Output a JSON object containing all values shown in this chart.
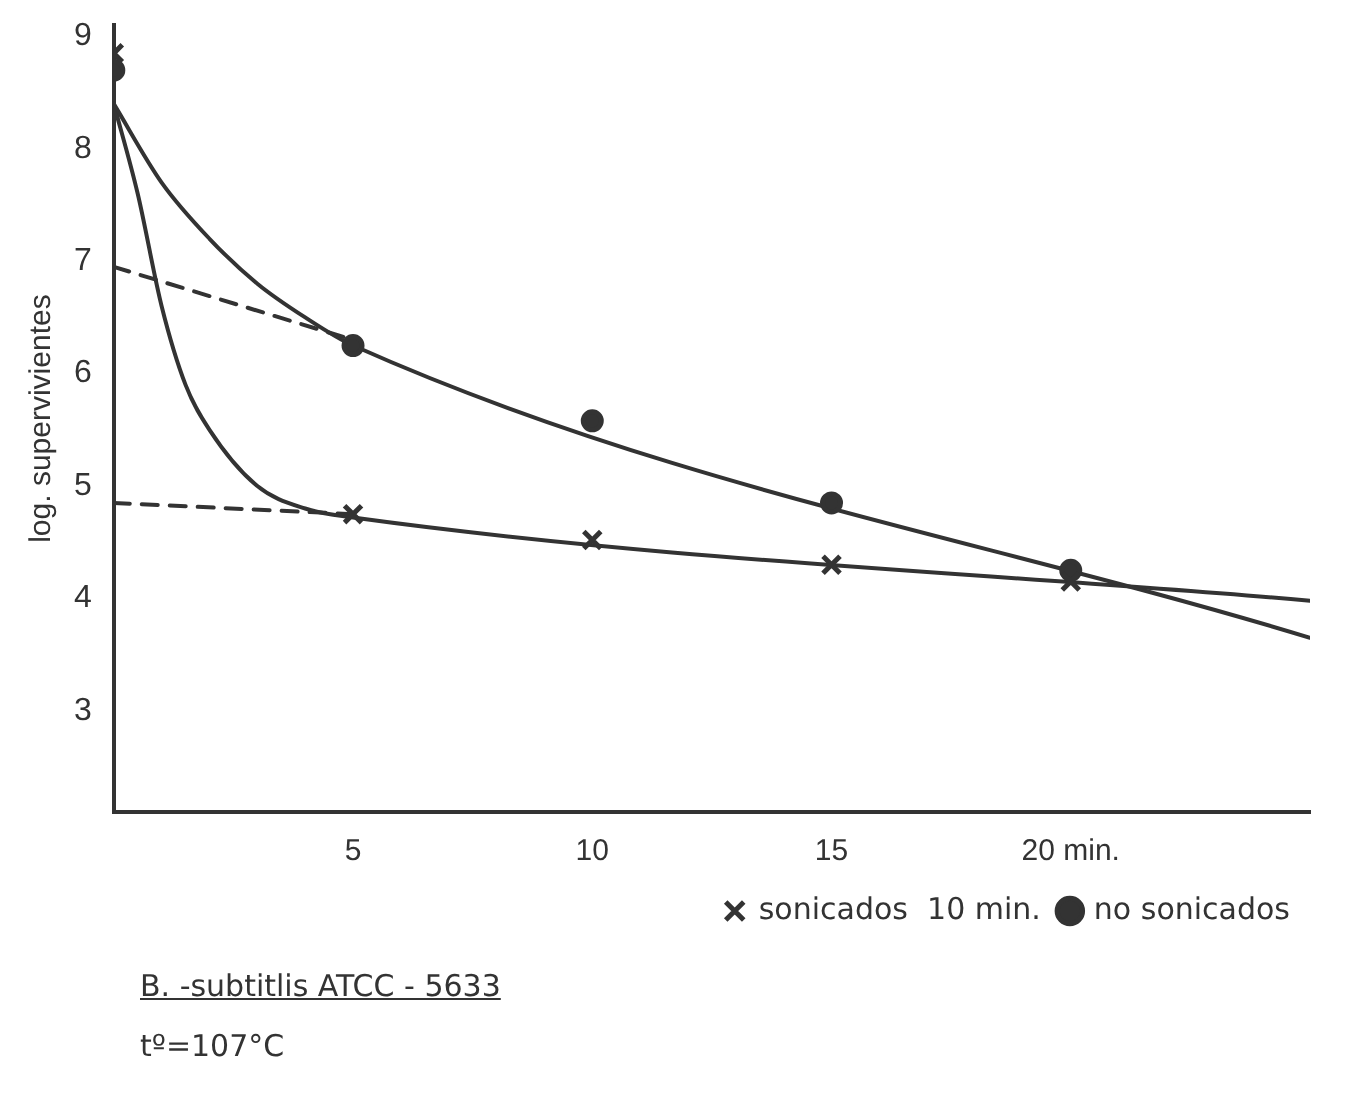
{
  "chart_data": {
    "type": "scatter",
    "ylabel": "log. supervivientes",
    "xlim": [
      0,
      25
    ],
    "ylim": [
      2.1,
      9.1
    ],
    "xticks": [
      5,
      10,
      15,
      {
        "value": 20,
        "label": "20 min."
      }
    ],
    "yticks": [
      3,
      4,
      5,
      6,
      7,
      8,
      9
    ],
    "grid": false,
    "legend": "bottom right",
    "annotations": [
      "B. -subtitlis  ATCC - 5633",
      "tº=107°C"
    ],
    "series": [
      {
        "name": "no sonicados",
        "marker": "circle",
        "color": "#333333",
        "x": [
          0,
          5,
          10,
          15,
          20
        ],
        "values": [
          8.7,
          6.25,
          5.58,
          4.85,
          4.25
        ]
      },
      {
        "name": "sonicados  10 min.",
        "marker": "cross",
        "color": "#333333",
        "x": [
          0,
          5,
          10,
          15,
          20
        ],
        "values": [
          8.85,
          4.75,
          4.52,
          4.3,
          4.15
        ]
      },
      {
        "type": "line",
        "marker": "none",
        "line_style": "solid",
        "color": "#333333",
        "x": [
          0,
          1,
          2,
          3,
          4,
          5,
          25
        ],
        "values": [
          8.4,
          7.7,
          7.2,
          6.8,
          6.5,
          6.25,
          3.65
        ]
      },
      {
        "type": "line",
        "marker": "none",
        "line_style": "solid",
        "color": "#333333",
        "x": [
          0,
          0.5,
          1,
          1.5,
          2,
          3,
          4,
          5,
          25
        ],
        "values": [
          8.4,
          7.6,
          6.6,
          5.9,
          5.5,
          5.0,
          4.8,
          4.72,
          3.98
        ]
      },
      {
        "type": "line",
        "marker": "none",
        "line_style": "dashed",
        "color": "#333333",
        "x": [
          0,
          5
        ],
        "values": [
          6.95,
          6.3
        ]
      },
      {
        "type": "line",
        "marker": "none",
        "line_style": "dashed",
        "color": "#333333",
        "x": [
          0,
          5
        ],
        "values": [
          4.85,
          4.75
        ]
      }
    ]
  }
}
